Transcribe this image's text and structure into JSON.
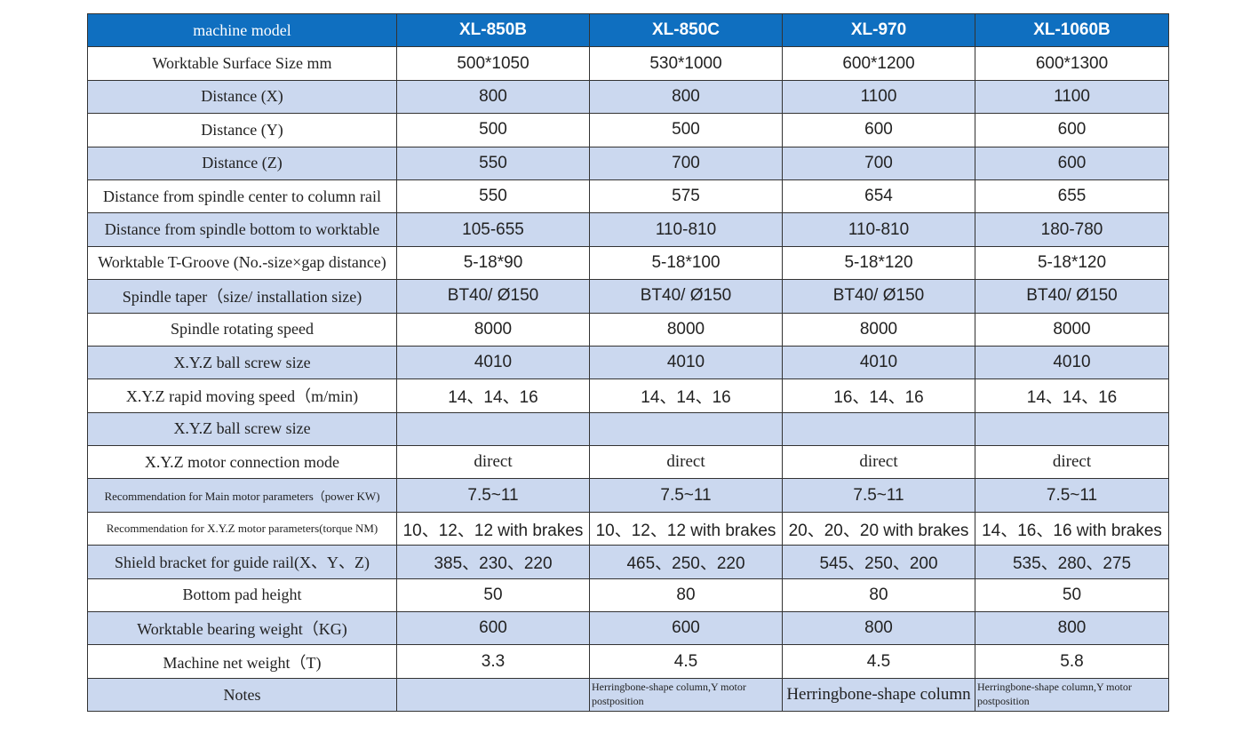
{
  "table": {
    "header": [
      "machine model",
      "XL-850B",
      "XL-850C",
      "XL-970",
      "XL-1060B"
    ],
    "rows": [
      [
        "Worktable Surface Size mm",
        "500*1050",
        "530*1000",
        "600*1200",
        "600*1300"
      ],
      [
        "Distance (X)",
        "800",
        "800",
        "1100",
        "1100"
      ],
      [
        "Distance (Y)",
        "500",
        "500",
        "600",
        "600"
      ],
      [
        "Distance (Z)",
        "550",
        "700",
        "700",
        "600"
      ],
      [
        "Distance from spindle center to column rail",
        "550",
        "575",
        "654",
        "655"
      ],
      [
        "Distance from spindle bottom to worktable",
        "105-655",
        "110-810",
        "110-810",
        "180-780"
      ],
      [
        "Worktable T-Groove (No.-size×gap distance)",
        "5-18*90",
        "5-18*100",
        "5-18*120",
        "5-18*120"
      ],
      [
        "Spindle taper（size/ installation size)",
        "BT40/ Ø150",
        "BT40/ Ø150",
        "BT40/ Ø150",
        "BT40/ Ø150"
      ],
      [
        "Spindle rotating speed",
        "8000",
        "8000",
        "8000",
        "8000"
      ],
      [
        "X.Y.Z ball screw size",
        "4010",
        "4010",
        "4010",
        "4010"
      ],
      [
        "X.Y.Z rapid moving speed（m/min)",
        "14、14、16",
        "14、14、16",
        "16、14、16",
        "14、14、16"
      ],
      [
        "X.Y.Z ball screw size",
        null,
        null,
        null,
        null
      ],
      [
        "X.Y.Z motor connection mode",
        "direct",
        "direct",
        "direct",
        "direct"
      ],
      [
        "Recommendation for Main motor parameters（power KW)",
        "7.5~11",
        "7.5~11",
        "7.5~11",
        "7.5~11"
      ],
      [
        "Recommendation for X.Y.Z motor parameters(torque NM)",
        "10、12、12 with brakes",
        "10、12、12 with brakes",
        "20、20、20 with brakes",
        "14、16、16 with brakes"
      ],
      [
        "Shield bracket for guide rail(X、Y、Z)",
        "385、230、220",
        "465、250、220",
        "545、250、200",
        "535、280、275"
      ],
      [
        "Bottom pad height",
        "50",
        "80",
        "80",
        "50"
      ],
      [
        "Worktable bearing weight（KG)",
        "600",
        "600",
        "800",
        "800"
      ],
      [
        "Machine net weight（T)",
        "3.3",
        "4.5",
        "4.5",
        "5.8"
      ],
      [
        "Notes",
        null,
        "Herringbone-shape column,Y motor postposition",
        "Herringbone-shape column",
        "Herringbone-shape column,Y motor postposition"
      ]
    ]
  }
}
